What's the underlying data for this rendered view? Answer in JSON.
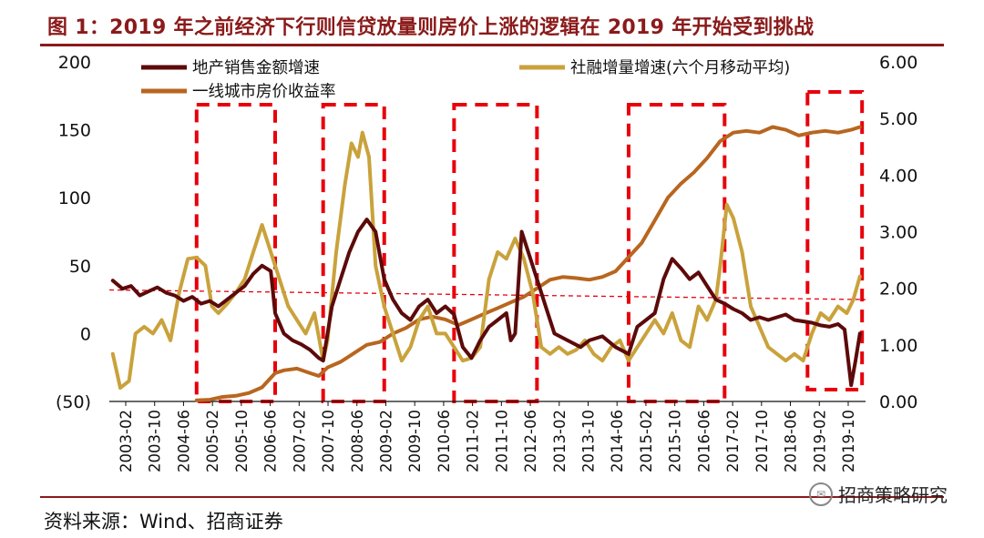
{
  "header": {
    "title": "图 1：2019 年之前经济下行则信贷放量则房价上涨的逻辑在 2019 年开始受到挑战"
  },
  "footer": {
    "source": "资料来源：Wind、招商证券",
    "watermark": "招商策略研究",
    "watermark_icon": "wechat-icon"
  },
  "colors": {
    "title": "#8b1a1a",
    "sales": "#5c0a0a",
    "social": "#c9a23c",
    "price": "#b8661f",
    "highlight": "#e8000b"
  },
  "chart_data": {
    "type": "line",
    "x_tick_labels": [
      "2003-02",
      "2003-10",
      "2004-06",
      "2005-02",
      "2005-10",
      "2006-06",
      "2007-02",
      "2007-10",
      "2008-06",
      "2009-02",
      "2009-10",
      "2010-06",
      "2011-02",
      "2011-10",
      "2012-06",
      "2013-02",
      "2013-10",
      "2014-06",
      "2015-02",
      "2015-10",
      "2016-06",
      "2017-02",
      "2017-10",
      "2018-06",
      "2019-02",
      "2019-10"
    ],
    "y_left": {
      "min": -50,
      "max": 200,
      "ticks": [
        "(50)",
        "0",
        "50",
        "100",
        "150",
        "200"
      ],
      "tick_values": [
        -50,
        0,
        50,
        100,
        150,
        200
      ]
    },
    "y_right": {
      "min": 0,
      "max": 6,
      "ticks": [
        "0.00",
        "1.00",
        "2.00",
        "3.00",
        "4.00",
        "5.00",
        "6.00"
      ],
      "tick_values": [
        0,
        1,
        2,
        3,
        4,
        5,
        6
      ]
    },
    "reference_line": {
      "axis": "right",
      "y_start": 1.97,
      "y_end": 1.8
    },
    "highlight_ranges": [
      {
        "x0": 2005.0,
        "x1": 2006.8
      },
      {
        "x0": 2007.9,
        "x1": 2009.3
      },
      {
        "x0": 2010.9,
        "x1": 2012.8
      },
      {
        "x0": 2014.9,
        "x1": 2017.1
      },
      {
        "x0": 2019.0,
        "x1": 2020.25
      }
    ],
    "series": [
      {
        "name": "地产销售金额增速",
        "axis": "left",
        "x": [
          2003.08,
          2003.3,
          2003.5,
          2003.7,
          2003.9,
          2004.1,
          2004.3,
          2004.5,
          2004.7,
          2004.9,
          2005.1,
          2005.3,
          2005.5,
          2005.7,
          2005.9,
          2006.1,
          2006.3,
          2006.5,
          2006.7,
          2006.8,
          2007.0,
          2007.2,
          2007.4,
          2007.6,
          2007.8,
          2007.9,
          2008.1,
          2008.3,
          2008.5,
          2008.7,
          2008.9,
          2009.1,
          2009.3,
          2009.5,
          2009.7,
          2009.9,
          2010.1,
          2010.3,
          2010.5,
          2010.7,
          2010.9,
          2011.1,
          2011.3,
          2011.5,
          2011.7,
          2011.9,
          2012.1,
          2012.2,
          2012.3,
          2012.45,
          2012.6,
          2012.8,
          2013.0,
          2013.2,
          2013.5,
          2013.8,
          2014.0,
          2014.3,
          2014.6,
          2014.9,
          2015.1,
          2015.3,
          2015.5,
          2015.7,
          2015.9,
          2016.1,
          2016.3,
          2016.5,
          2016.7,
          2016.9,
          2017.1,
          2017.3,
          2017.5,
          2017.7,
          2017.9,
          2018.1,
          2018.3,
          2018.5,
          2018.7,
          2018.9,
          2019.1,
          2019.3,
          2019.5,
          2019.7,
          2019.85,
          2020.0,
          2020.1,
          2020.2
        ],
        "y": [
          39,
          33,
          35,
          28,
          31,
          34,
          30,
          28,
          24,
          27,
          22,
          24,
          20,
          25,
          30,
          35,
          44,
          50,
          46,
          15,
          0,
          -5,
          -8,
          -12,
          -18,
          -20,
          20,
          40,
          60,
          75,
          84,
          75,
          40,
          25,
          15,
          10,
          20,
          25,
          15,
          20,
          14,
          -10,
          -18,
          -5,
          5,
          10,
          15,
          -5,
          0,
          75,
          60,
          40,
          20,
          0,
          -5,
          -10,
          -5,
          -2,
          -10,
          -15,
          5,
          10,
          15,
          40,
          55,
          48,
          40,
          45,
          35,
          25,
          22,
          18,
          15,
          10,
          12,
          10,
          12,
          14,
          10,
          9,
          8,
          6,
          5,
          7,
          3,
          -38,
          -20,
          0
        ]
      },
      {
        "name": "社融增量增速(六个月移动平均)",
        "axis": "left",
        "x": [
          2003.08,
          2003.25,
          2003.45,
          2003.6,
          2003.8,
          2004.0,
          2004.2,
          2004.4,
          2004.6,
          2004.8,
          2005.0,
          2005.2,
          2005.35,
          2005.5,
          2005.7,
          2005.9,
          2006.1,
          2006.3,
          2006.5,
          2006.7,
          2006.9,
          2007.1,
          2007.3,
          2007.5,
          2007.7,
          2007.9,
          2008.0,
          2008.2,
          2008.4,
          2008.55,
          2008.7,
          2008.8,
          2008.95,
          2009.1,
          2009.3,
          2009.5,
          2009.7,
          2009.9,
          2010.1,
          2010.3,
          2010.5,
          2010.7,
          2010.9,
          2011.1,
          2011.3,
          2011.5,
          2011.7,
          2011.9,
          2012.1,
          2012.3,
          2012.5,
          2012.7,
          2012.9,
          2013.1,
          2013.3,
          2013.5,
          2013.7,
          2013.9,
          2014.1,
          2014.3,
          2014.5,
          2014.7,
          2014.9,
          2015.1,
          2015.3,
          2015.5,
          2015.7,
          2015.9,
          2016.1,
          2016.3,
          2016.5,
          2016.7,
          2016.9,
          2017.0,
          2017.15,
          2017.3,
          2017.5,
          2017.7,
          2017.9,
          2018.1,
          2018.3,
          2018.5,
          2018.7,
          2018.9,
          2019.1,
          2019.3,
          2019.5,
          2019.7,
          2019.9,
          2020.05,
          2020.2
        ],
        "y": [
          -15,
          -40,
          -35,
          0,
          5,
          0,
          10,
          -5,
          30,
          55,
          56,
          50,
          20,
          15,
          22,
          30,
          40,
          60,
          80,
          60,
          40,
          20,
          10,
          0,
          15,
          -20,
          -5,
          60,
          110,
          140,
          130,
          148,
          130,
          50,
          20,
          0,
          -20,
          -10,
          10,
          20,
          0,
          0,
          -10,
          -20,
          -18,
          -10,
          40,
          60,
          55,
          70,
          55,
          30,
          -10,
          -15,
          -10,
          -15,
          -12,
          -5,
          -15,
          -20,
          -10,
          -5,
          -20,
          -10,
          0,
          10,
          0,
          15,
          -5,
          -10,
          20,
          10,
          25,
          50,
          95,
          85,
          60,
          20,
          5,
          -10,
          -15,
          -20,
          -15,
          -20,
          0,
          15,
          10,
          20,
          15,
          25,
          42
        ]
      },
      {
        "name": "一线城市房价收益率",
        "axis": "right",
        "x": [
          2005.0,
          2005.3,
          2005.6,
          2005.9,
          2006.2,
          2006.5,
          2006.8,
          2007.0,
          2007.3,
          2007.6,
          2007.8,
          2008.0,
          2008.3,
          2008.6,
          2008.9,
          2009.2,
          2009.5,
          2009.8,
          2010.1,
          2010.4,
          2010.7,
          2011.0,
          2011.3,
          2011.6,
          2011.9,
          2012.2,
          2012.5,
          2012.8,
          2013.1,
          2013.4,
          2013.7,
          2014.0,
          2014.3,
          2014.6,
          2014.9,
          2015.2,
          2015.5,
          2015.8,
          2016.1,
          2016.4,
          2016.7,
          2017.0,
          2017.3,
          2017.6,
          2017.9,
          2018.2,
          2018.5,
          2018.8,
          2019.1,
          2019.4,
          2019.7,
          2020.0,
          2020.2
        ],
        "y": [
          0.02,
          0.03,
          0.08,
          0.1,
          0.15,
          0.25,
          0.5,
          0.55,
          0.58,
          0.5,
          0.45,
          0.6,
          0.7,
          0.85,
          1.0,
          1.05,
          1.2,
          1.3,
          1.45,
          1.5,
          1.45,
          1.35,
          1.45,
          1.55,
          1.65,
          1.75,
          1.85,
          2.0,
          2.15,
          2.2,
          2.18,
          2.15,
          2.2,
          2.3,
          2.55,
          2.8,
          3.2,
          3.6,
          3.85,
          4.05,
          4.3,
          4.6,
          4.75,
          4.78,
          4.75,
          4.85,
          4.8,
          4.7,
          4.75,
          4.78,
          4.75,
          4.8,
          4.85
        ]
      }
    ],
    "legend": [
      "地产销售金额增速",
      "社融增量增速(六个月移动平均)",
      "一线城市房价收益率"
    ]
  }
}
